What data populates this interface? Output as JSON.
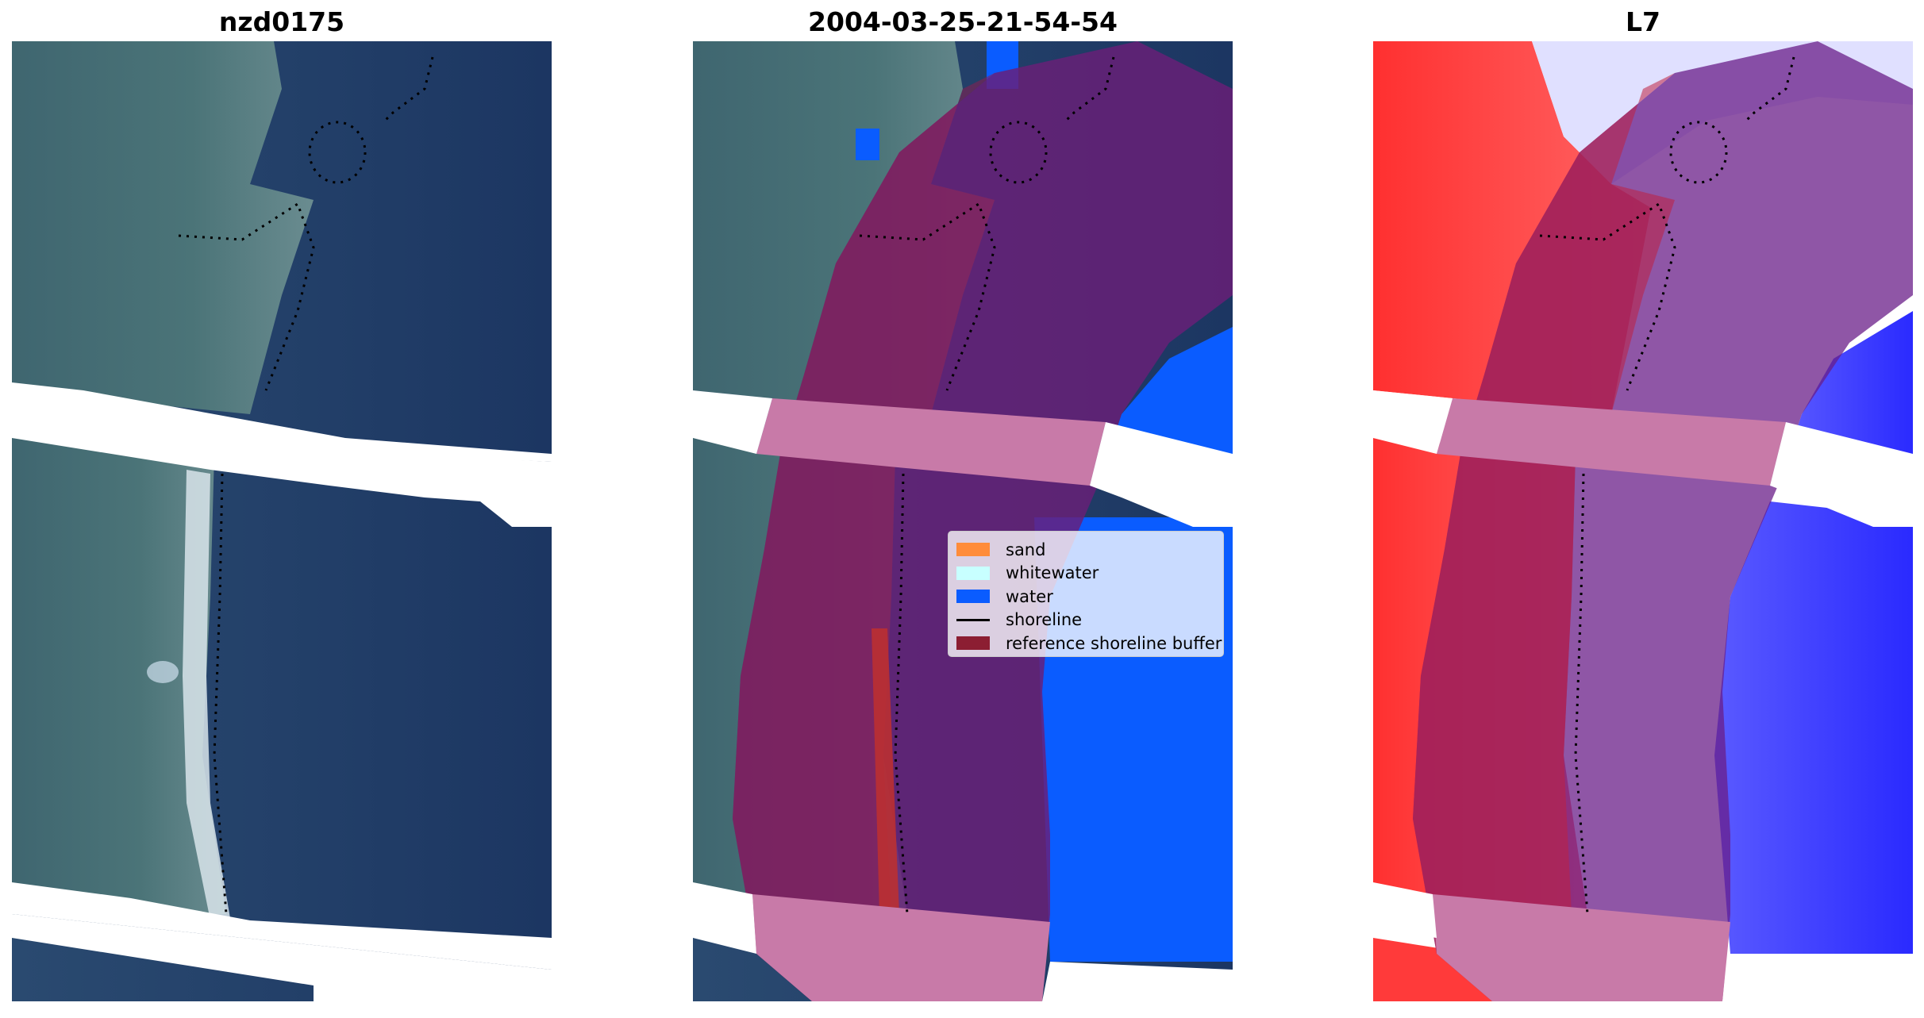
{
  "panels": [
    {
      "title": "nzd0175"
    },
    {
      "title": "2004-03-25-21-54-54"
    },
    {
      "title": "L7"
    }
  ],
  "legend": {
    "items": [
      {
        "label": "sand",
        "color": "#ff8c3a",
        "kind": "patch"
      },
      {
        "label": "whitewater",
        "color": "#c8ffff",
        "kind": "patch"
      },
      {
        "label": "water",
        "color": "#0a5cff",
        "kind": "patch"
      },
      {
        "label": "shoreline",
        "color": "#000000",
        "kind": "line"
      },
      {
        "label": "reference shoreline buffer",
        "color": "#8c1e32",
        "kind": "patch"
      }
    ]
  },
  "colors": {
    "ocean": "#1e3a66",
    "land": "#3a6070",
    "water_class": "#0a5cff",
    "buffer_overlay": "#8c1e50",
    "index_positive": "#ff2020",
    "index_negative": "#3030ff"
  }
}
